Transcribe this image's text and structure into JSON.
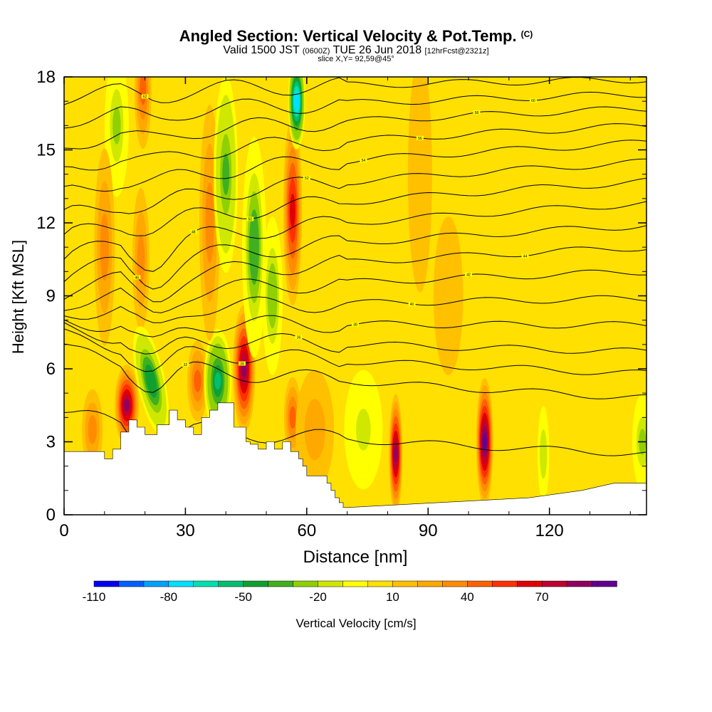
{
  "header": {
    "title": "Angled Section: Vertical Velocity & Pot.Temp.",
    "title_mark": "(C)",
    "valid_prefix": "Valid 1500 JST",
    "valid_utc": "(0600Z)",
    "valid_date": "TUE 26 Jun 2018",
    "forecast": "[12hrFcst@2321z]",
    "slice": "slice X,Y= 92,59@45°"
  },
  "colorbar": {
    "label": "Vertical Velocity [cm/s]",
    "tick_labels": [
      "-110",
      "-80",
      "-50",
      "-20",
      "10",
      "40",
      "70"
    ],
    "levels": [
      -110,
      -100,
      -90,
      -80,
      -70,
      -60,
      -50,
      -40,
      -30,
      -20,
      -10,
      0,
      10,
      20,
      30,
      40,
      50,
      60,
      70,
      80,
      90
    ],
    "colors": [
      "#0000f0",
      "#0060ff",
      "#00a0ff",
      "#00e0ff",
      "#00e0b0",
      "#00c070",
      "#10a030",
      "#40b020",
      "#90d000",
      "#d0e800",
      "#ffff00",
      "#ffe000",
      "#ffc000",
      "#ffa800",
      "#ff8c00",
      "#ff6000",
      "#ff3000",
      "#e00000",
      "#c00030",
      "#900060",
      "#600090"
    ]
  },
  "chart_data": {
    "type": "heatmap",
    "title": "Angled Section: Vertical Velocity & Pot.Temp.",
    "xlabel": "Distance [nm]",
    "ylabel": "Height [Kft MSL]",
    "xlim": [
      0,
      144
    ],
    "ylim": [
      0,
      18
    ],
    "x_ticks": [
      0,
      30,
      60,
      90,
      120
    ],
    "y_ticks": [
      0,
      3,
      6,
      9,
      12,
      15,
      18
    ],
    "background_level": 5,
    "terrain": {
      "x": [
        0,
        10,
        10,
        12,
        12,
        14,
        14,
        16,
        16,
        18,
        18,
        20,
        20,
        23,
        23,
        26,
        26,
        28,
        28,
        30,
        30,
        32,
        32,
        34,
        34,
        36,
        36,
        38,
        38,
        42,
        42,
        45,
        45,
        46,
        46,
        48,
        48,
        50,
        50,
        52,
        52,
        54,
        54,
        56,
        56,
        58,
        58,
        59,
        59,
        60,
        60,
        65,
        65,
        66,
        66,
        67,
        67,
        68,
        68,
        69,
        69,
        70,
        70,
        115,
        115,
        128,
        128,
        136,
        136,
        144
      ],
      "height": [
        2.6,
        2.6,
        2.3,
        2.3,
        2.7,
        2.7,
        3.4,
        3.4,
        3.9,
        3.9,
        3.6,
        3.6,
        3.3,
        3.3,
        3.7,
        3.7,
        4.3,
        4.3,
        3.9,
        3.9,
        3.6,
        3.6,
        3.3,
        3.3,
        4.0,
        4.0,
        4.3,
        4.3,
        4.6,
        4.6,
        3.6,
        3.6,
        3.0,
        3.0,
        2.9,
        2.9,
        2.7,
        2.7,
        3.0,
        3.0,
        2.7,
        2.7,
        3.0,
        3.0,
        2.6,
        2.6,
        2.3,
        2.3,
        2.0,
        2.0,
        1.6,
        1.6,
        1.3,
        1.3,
        1.0,
        1.0,
        0.7,
        0.7,
        0.5,
        0.5,
        0.3,
        0.3,
        0.3,
        0.7,
        0.7,
        1.0,
        1.0,
        1.3,
        1.3,
        1.3
      ]
    },
    "velocity_features": [
      {
        "x": 15.5,
        "y": 4.5,
        "sx": 1.2,
        "sy": 1.0,
        "tilt": 0,
        "value": 80
      },
      {
        "x": 19.5,
        "y": 17.5,
        "sx": 0.8,
        "sy": 1.5,
        "tilt": 0,
        "value": 45
      },
      {
        "x": 19.0,
        "y": 10.5,
        "sx": 0.8,
        "sy": 1.8,
        "tilt": 0,
        "value": 30
      },
      {
        "x": 13.0,
        "y": 16.0,
        "sx": 1.2,
        "sy": 1.8,
        "tilt": 0,
        "value": -25
      },
      {
        "x": 21.5,
        "y": 5.5,
        "sx": 1.4,
        "sy": 1.4,
        "tilt": 0.3,
        "value": -50
      },
      {
        "x": 10.0,
        "y": 11.0,
        "sx": 1.0,
        "sy": 2.5,
        "tilt": 0,
        "value": 30
      },
      {
        "x": 33.0,
        "y": 5.5,
        "sx": 1.0,
        "sy": 1.0,
        "tilt": 0,
        "value": 45
      },
      {
        "x": 38.0,
        "y": 5.5,
        "sx": 1.4,
        "sy": 1.3,
        "tilt": 0,
        "value": -55
      },
      {
        "x": 36.0,
        "y": 12.0,
        "sx": 1.0,
        "sy": 3.0,
        "tilt": 0,
        "value": 35
      },
      {
        "x": 40.0,
        "y": 14.0,
        "sx": 1.2,
        "sy": 2.5,
        "tilt": 0,
        "value": -35
      },
      {
        "x": 44.5,
        "y": 6.0,
        "sx": 1.1,
        "sy": 1.6,
        "tilt": 0,
        "value": 85
      },
      {
        "x": 47.0,
        "y": 11.0,
        "sx": 1.2,
        "sy": 2.8,
        "tilt": 0,
        "value": -40
      },
      {
        "x": 51.5,
        "y": 9.0,
        "sx": 1.0,
        "sy": 2.0,
        "tilt": 0,
        "value": -30
      },
      {
        "x": 56.5,
        "y": 12.5,
        "sx": 0.9,
        "sy": 2.4,
        "tilt": 0,
        "value": 65
      },
      {
        "x": 57.5,
        "y": 17.0,
        "sx": 0.8,
        "sy": 1.2,
        "tilt": 0,
        "value": -80
      },
      {
        "x": 56.5,
        "y": 4.0,
        "sx": 0.8,
        "sy": 1.0,
        "tilt": 0,
        "value": 45
      },
      {
        "x": 62.0,
        "y": 3.5,
        "sx": 2.0,
        "sy": 1.5,
        "tilt": 0,
        "value": 25
      },
      {
        "x": 74.0,
        "y": 3.5,
        "sx": 2.0,
        "sy": 1.5,
        "tilt": 0,
        "value": -15
      },
      {
        "x": 82.0,
        "y": 2.5,
        "sx": 0.6,
        "sy": 1.5,
        "tilt": 0,
        "value": 80
      },
      {
        "x": 104.0,
        "y": 3.0,
        "sx": 0.8,
        "sy": 1.6,
        "tilt": 0,
        "value": 90
      },
      {
        "x": 118.5,
        "y": 2.5,
        "sx": 0.5,
        "sy": 1.2,
        "tilt": 0,
        "value": -20
      },
      {
        "x": 143.0,
        "y": 3.0,
        "sx": 1.0,
        "sy": 1.2,
        "tilt": 0,
        "value": -25
      },
      {
        "x": 88.0,
        "y": 14.0,
        "sx": 1.2,
        "sy": 3.0,
        "tilt": 0,
        "value": 18
      },
      {
        "x": 95.0,
        "y": 9.0,
        "sx": 1.5,
        "sy": 2.0,
        "tilt": 0,
        "value": 18
      },
      {
        "x": 7.0,
        "y": 3.5,
        "sx": 1.0,
        "sy": 1.0,
        "tilt": 0,
        "value": 30
      }
    ],
    "theta_contours": {
      "left_heights": [
        4.2,
        6.8,
        7.3,
        7.6,
        7.9,
        8.3,
        8.7,
        9.2,
        9.8,
        10.5,
        11.3,
        12.2,
        13.2,
        14.2,
        15.2,
        16.2,
        17.2
      ],
      "right_heights": [
        2.5,
        4.8,
        5.8,
        6.7,
        7.8,
        8.9,
        10.0,
        11.0,
        11.9,
        12.8,
        13.7,
        14.5,
        15.3,
        16.0,
        16.7,
        17.3,
        17.9
      ],
      "labels": [
        "30",
        "32",
        "34",
        "36",
        "38",
        "40",
        "42",
        "44",
        "46",
        "48",
        "50",
        "52",
        "54",
        "56",
        "58",
        "60",
        "62"
      ]
    }
  }
}
